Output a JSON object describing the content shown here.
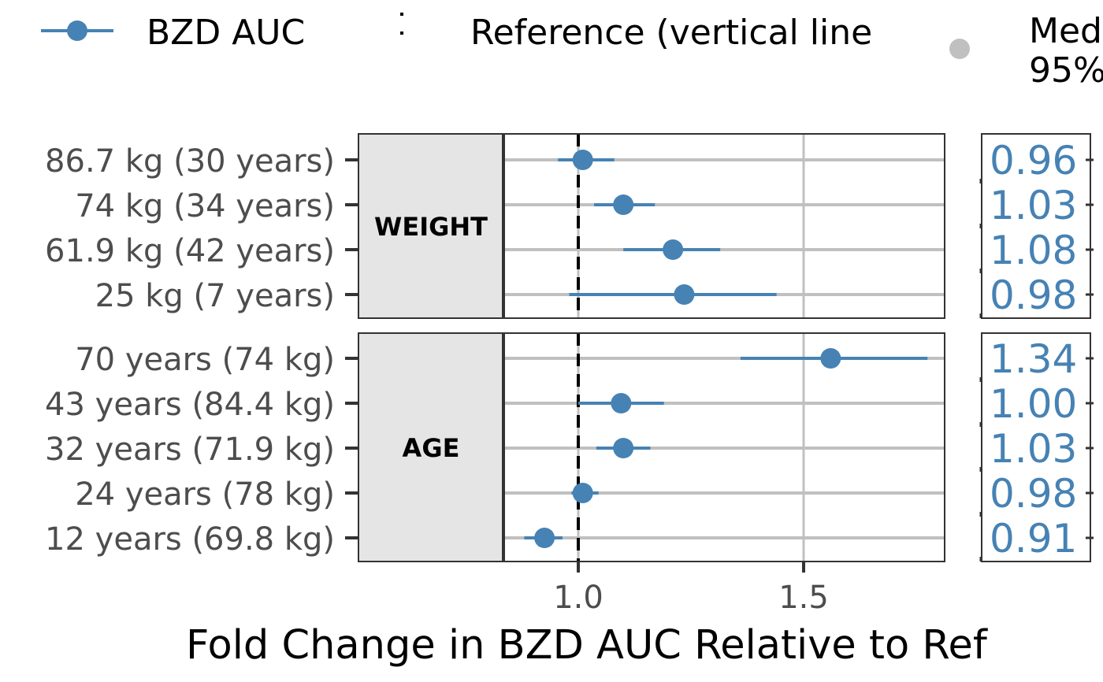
{
  "chart_data": {
    "type": "forest",
    "xlabel": "Fold Change in BZD AUC Relative to Ref",
    "xticks": [
      1.0,
      1.5
    ],
    "xtick_labels": [
      "1.0",
      "1.5"
    ],
    "xlim": [
      0.51,
      1.81
    ],
    "reference_line": 1.0,
    "grid": true,
    "legend_position": "top",
    "legend": [
      {
        "label": "BZD AUC",
        "marker": "point-range",
        "color": "#4682b4"
      },
      {
        "label": "Reference (vertical line",
        "marker": "dashed-vertical-line",
        "color": "#000000"
      },
      {
        "label": "Med",
        "label2": "95%",
        "marker": "point",
        "color": "#c0c0c0"
      }
    ],
    "colors": {
      "series": "#4682b4",
      "strip": "#e5e5e5",
      "grid": "#c0c0c0",
      "axis_text": "#4d4d4d"
    },
    "panels": [
      {
        "strip": "WEIGHT",
        "rows": [
          {
            "label": "86.7 kg (30 years)",
            "median": 1.01,
            "lower": 0.955,
            "upper": 1.08,
            "table_value": "0.96"
          },
          {
            "label": "74 kg (34 years)",
            "median": 1.1,
            "lower": 1.035,
            "upper": 1.17,
            "table_value": "1.03"
          },
          {
            "label": "61.9 kg (42 years)",
            "median": 1.21,
            "lower": 1.1,
            "upper": 1.315,
            "table_value": "1.08"
          },
          {
            "label": "25 kg (7 years)",
            "median": 1.235,
            "lower": 0.98,
            "upper": 1.44,
            "table_value": "0.98"
          }
        ]
      },
      {
        "strip": "AGE",
        "rows": [
          {
            "label": "70 years (74 kg)",
            "median": 1.56,
            "lower": 1.36,
            "upper": 1.775,
            "table_value": "1.34"
          },
          {
            "label": "43 years (84.4 kg)",
            "median": 1.095,
            "lower": 1.0,
            "upper": 1.19,
            "table_value": "1.00"
          },
          {
            "label": "32 years (71.9 kg)",
            "median": 1.1,
            "lower": 1.04,
            "upper": 1.16,
            "table_value": "1.03"
          },
          {
            "label": "24 years (78 kg)",
            "median": 1.01,
            "lower": 0.985,
            "upper": 1.045,
            "table_value": "0.98"
          },
          {
            "label": "12 years (69.8 kg)",
            "median": 0.925,
            "lower": 0.88,
            "upper": 0.965,
            "table_value": "0.91"
          }
        ]
      }
    ]
  }
}
